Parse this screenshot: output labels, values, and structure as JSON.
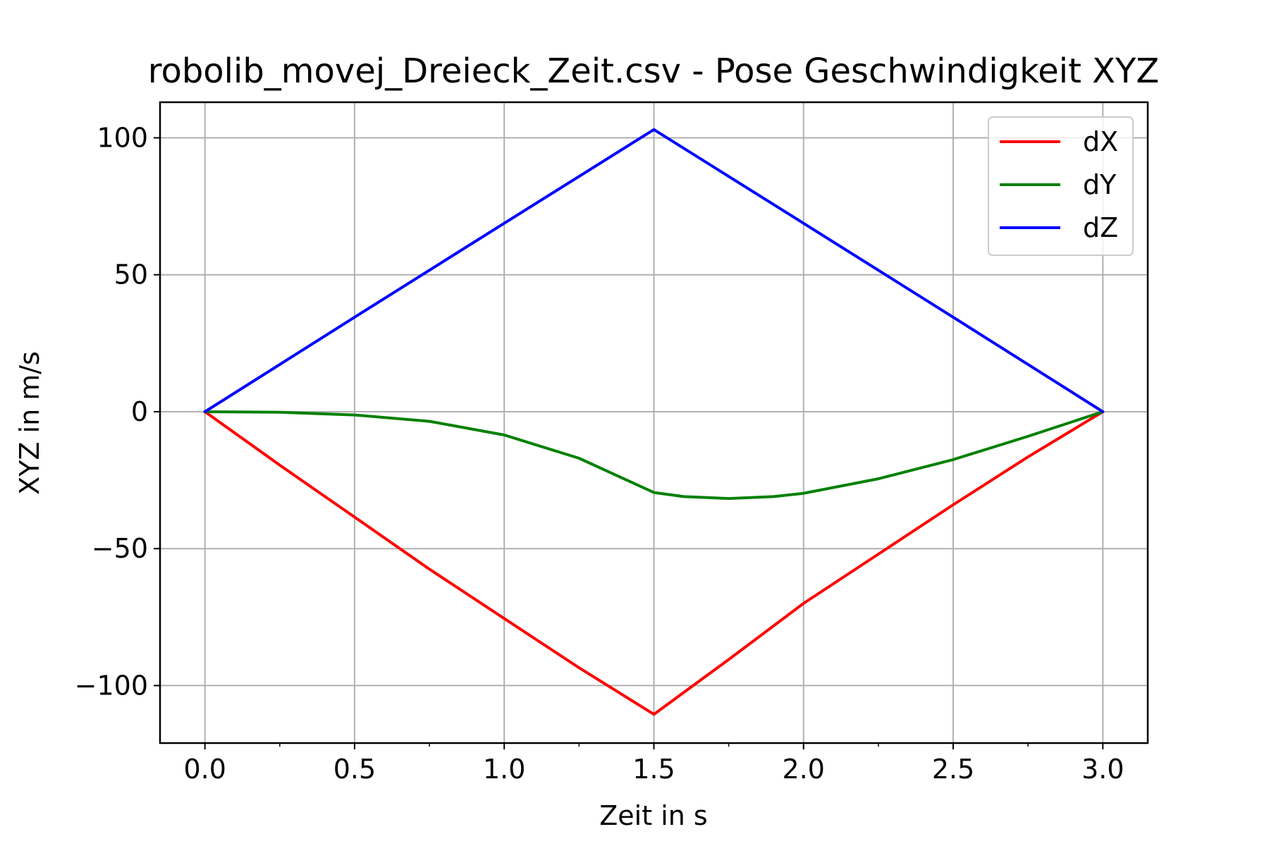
{
  "chart_data": {
    "type": "line",
    "title": "robolib_movej_Dreieck_Zeit.csv - Pose Geschwindigkeit XYZ",
    "xlabel": "Zeit in s",
    "ylabel": "XYZ in m/s",
    "xlim": [
      -0.15,
      3.15
    ],
    "ylim": [
      -121,
      113
    ],
    "xticks": [
      0.0,
      0.5,
      1.0,
      1.5,
      2.0,
      2.5,
      3.0
    ],
    "xtick_labels": [
      "0.0",
      "0.5",
      "1.0",
      "1.5",
      "2.0",
      "2.5",
      "3.0"
    ],
    "yticks": [
      100,
      50,
      0,
      -50,
      -100
    ],
    "ytick_labels": [
      "100",
      "50",
      "0",
      "−50",
      "−100"
    ],
    "grid": true,
    "legend_position": "top-right",
    "series": [
      {
        "name": "dX",
        "color": "#ff0000",
        "x": [
          0.0,
          0.25,
          0.5,
          0.75,
          1.0,
          1.25,
          1.5,
          1.75,
          2.0,
          2.25,
          2.5,
          2.75,
          3.0
        ],
        "y": [
          0,
          -19.5,
          -38.5,
          -57.5,
          -75.5,
          -93.5,
          -110.5,
          -90.5,
          -70,
          -52,
          -34,
          -16.5,
          0
        ]
      },
      {
        "name": "dY",
        "color": "#008000",
        "x": [
          0.0,
          0.25,
          0.5,
          0.75,
          1.0,
          1.25,
          1.5,
          1.6,
          1.75,
          1.9,
          2.0,
          2.25,
          2.5,
          2.75,
          3.0
        ],
        "y": [
          0,
          -0.2,
          -1.2,
          -3.5,
          -8.5,
          -17,
          -29.5,
          -31,
          -31.7,
          -31,
          -29.8,
          -24.5,
          -17.5,
          -9,
          0
        ]
      },
      {
        "name": "dZ",
        "color": "#0000ff",
        "x": [
          0.0,
          0.5,
          1.0,
          1.5,
          2.0,
          2.5,
          3.0
        ],
        "y": [
          0,
          34.5,
          68.8,
          103,
          68.8,
          34.5,
          0
        ]
      }
    ]
  }
}
